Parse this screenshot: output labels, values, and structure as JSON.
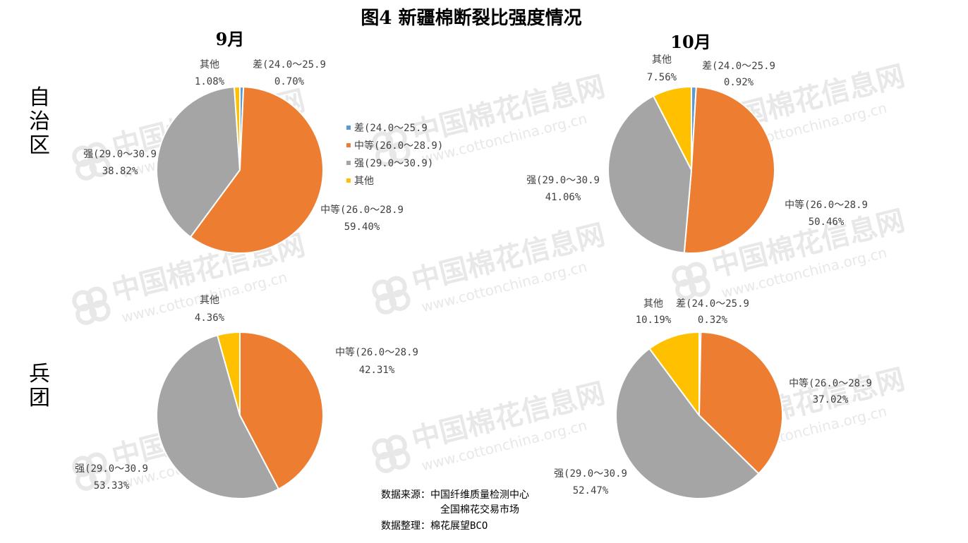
{
  "title": "图4 新疆棉断裂比强度情况",
  "column_headers": [
    "9月",
    "10月"
  ],
  "row_headers": [
    "自治区",
    "兵团"
  ],
  "legend": {
    "items": [
      {
        "name": "差(24.0～25.9",
        "color": "#5b9bd5"
      },
      {
        "name": "中等(26.0～28.9)",
        "color": "#ed7d31"
      },
      {
        "name": "强(29.0～30.9)",
        "color": "#a5a5a5"
      },
      {
        "name": "其他",
        "color": "#ffc000"
      }
    ]
  },
  "watermark": {
    "name": "中国棉花信息网",
    "url": "www.cottonchina.org.cn",
    "color": "#d9d9d9"
  },
  "source": {
    "line1": "数据来源：中国纤维质量检测中心",
    "line2": "全国棉花交易市场",
    "line3": "数据整理：棉花展望BCO"
  },
  "chart_data": [
    {
      "type": "pie",
      "row": "自治区",
      "column": "9月",
      "slices": [
        {
          "label": "差(24.0～25.9",
          "value": 0.7,
          "display": "0.70%",
          "color": "#5b9bd5"
        },
        {
          "label": "中等(26.0～28.9",
          "value": 59.4,
          "display": "59.40%",
          "color": "#ed7d31"
        },
        {
          "label": "强(29.0～30.9",
          "value": 38.82,
          "display": "38.82%",
          "color": "#a5a5a5"
        },
        {
          "label": "其他",
          "value": 1.08,
          "display": "1.08%",
          "color": "#ffc000"
        }
      ]
    },
    {
      "type": "pie",
      "row": "自治区",
      "column": "10月",
      "slices": [
        {
          "label": "差(24.0～25.9",
          "value": 0.92,
          "display": "0.92%",
          "color": "#5b9bd5"
        },
        {
          "label": "中等(26.0～28.9",
          "value": 50.46,
          "display": "50.46%",
          "color": "#ed7d31"
        },
        {
          "label": "强(29.0～30.9",
          "value": 41.06,
          "display": "41.06%",
          "color": "#a5a5a5"
        },
        {
          "label": "其他",
          "value": 7.56,
          "display": "7.56%",
          "color": "#ffc000"
        }
      ]
    },
    {
      "type": "pie",
      "row": "兵团",
      "column": "9月",
      "slices": [
        {
          "label": "中等(26.0～28.9",
          "value": 42.31,
          "display": "42.31%",
          "color": "#ed7d31"
        },
        {
          "label": "强(29.0～30.9",
          "value": 53.33,
          "display": "53.33%",
          "color": "#a5a5a5"
        },
        {
          "label": "其他",
          "value": 4.36,
          "display": "4.36%",
          "color": "#ffc000"
        }
      ]
    },
    {
      "type": "pie",
      "row": "兵团",
      "column": "10月",
      "slices": [
        {
          "label": "差(24.0～25.9",
          "value": 0.32,
          "display": "0.32%",
          "color": "#5b9bd5"
        },
        {
          "label": "中等(26.0～28.9",
          "value": 37.02,
          "display": "37.02%",
          "color": "#ed7d31"
        },
        {
          "label": "强(29.0～30.9",
          "value": 52.47,
          "display": "52.47%",
          "color": "#a5a5a5"
        },
        {
          "label": "其他",
          "value": 10.19,
          "display": "10.19%",
          "color": "#ffc000"
        }
      ]
    }
  ]
}
